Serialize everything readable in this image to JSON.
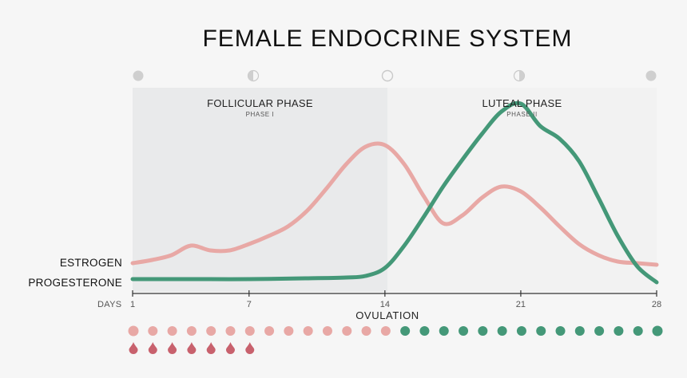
{
  "title": "FEMALE ENDOCRINE SYSTEM",
  "phases": [
    {
      "name": "FOLLICULAR PHASE",
      "subtitle": "PHASE I"
    },
    {
      "name": "LUTEAL PHASE",
      "subtitle": "PHASE II"
    }
  ],
  "moon_icons": [
    "new-moon-icon",
    "first-quarter-moon-icon",
    "full-moon-icon",
    "last-quarter-moon-icon",
    "new-moon-icon"
  ],
  "hormone_labels": {
    "estrogen": "ESTROGEN",
    "progesterone": "PROGESTERONE"
  },
  "axis": {
    "days_label": "DAYS",
    "ticks": [
      1,
      7,
      14,
      21,
      28
    ],
    "tick_labels": [
      "1",
      "7",
      "14",
      "21",
      "28"
    ],
    "event_label": "OVULATION"
  },
  "chart_data": {
    "type": "line",
    "title": "FEMALE ENDOCRINE SYSTEM",
    "xlabel": "DAYS",
    "xlim": [
      1,
      28
    ],
    "ylim": [
      0,
      100
    ],
    "series": [
      {
        "name": "ESTROGEN",
        "color": "#e8a8a5",
        "x": [
          1,
          2,
          3,
          4,
          5,
          6,
          7,
          8,
          9,
          10,
          11,
          12,
          13,
          14,
          15,
          16,
          17,
          18,
          19,
          20,
          21,
          22,
          23,
          24,
          25,
          26,
          27,
          28
        ],
        "y": [
          15,
          17,
          20,
          26,
          23,
          23,
          27,
          32,
          38,
          48,
          62,
          77,
          88,
          89,
          77,
          57,
          40,
          45,
          56,
          63,
          60,
          50,
          38,
          27,
          20,
          16,
          15,
          14
        ]
      },
      {
        "name": "PROGESTERONE",
        "color": "#449878",
        "x": [
          1,
          4,
          7,
          10,
          12,
          13,
          14,
          15,
          16,
          17,
          18,
          19,
          20,
          21,
          22,
          23,
          24,
          25,
          26,
          27,
          28
        ],
        "y": [
          5,
          5,
          5,
          5.5,
          6,
          7,
          12,
          26,
          44,
          63,
          80,
          96,
          110,
          115,
          101,
          93,
          79,
          56,
          32,
          13,
          3
        ]
      }
    ],
    "phases": [
      {
        "name": "FOLLICULAR PHASE",
        "from": 1,
        "to": 14
      },
      {
        "name": "LUTEAL PHASE",
        "from": 14,
        "to": 28
      }
    ],
    "menstruation_days": 7,
    "dot_colors": {
      "follicular": "#e8a8a5",
      "luteal": "#449878",
      "drop": "#c8616d"
    },
    "grid": false
  },
  "dots": {
    "count": 28,
    "follicular_until": 14,
    "drops": 7
  }
}
